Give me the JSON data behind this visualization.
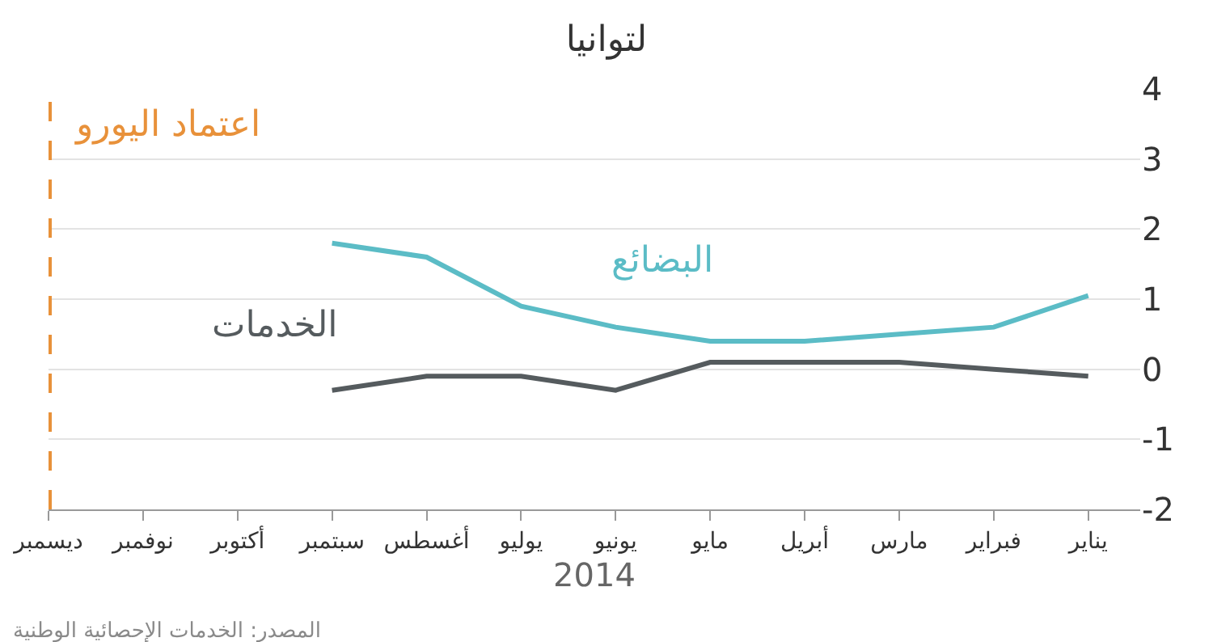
{
  "chart_data": {
    "type": "line",
    "title": "لتوانيا",
    "xlabel": "2014",
    "categories": [
      "ديسمبر",
      "نوفمبر",
      "أكتوبر",
      "سبتمبر",
      "أغسطس",
      "يوليو",
      "يونيو",
      "مايو",
      "أبريل",
      "مارس",
      "فبراير",
      "يناير"
    ],
    "series": [
      {
        "name": "البضائع",
        "color": "#5bbcc6",
        "values": [
          null,
          null,
          null,
          1.8,
          1.6,
          0.9,
          0.6,
          0.4,
          0.4,
          0.5,
          0.6,
          1.05
        ]
      },
      {
        "name": "الخدمات",
        "color": "#555b5e",
        "values": [
          null,
          null,
          null,
          -0.3,
          -0.1,
          -0.1,
          -0.3,
          0.1,
          0.1,
          0.1,
          0.0,
          -0.1
        ]
      }
    ],
    "ylim": [
      -2,
      4
    ],
    "yticks": [
      -2,
      -1,
      0,
      1,
      2,
      3,
      4
    ],
    "grid": "y",
    "legend": false,
    "marker": "none",
    "line_style": "solid",
    "ref_lines": [
      {
        "axis": "x",
        "value": "ديسمبر",
        "label": "اعتماد اليورو",
        "color": "#e8913a",
        "line_style": "dashed"
      }
    ],
    "annotations": [
      "المصدر: الخدمات الإحصائية الوطنية"
    ]
  }
}
